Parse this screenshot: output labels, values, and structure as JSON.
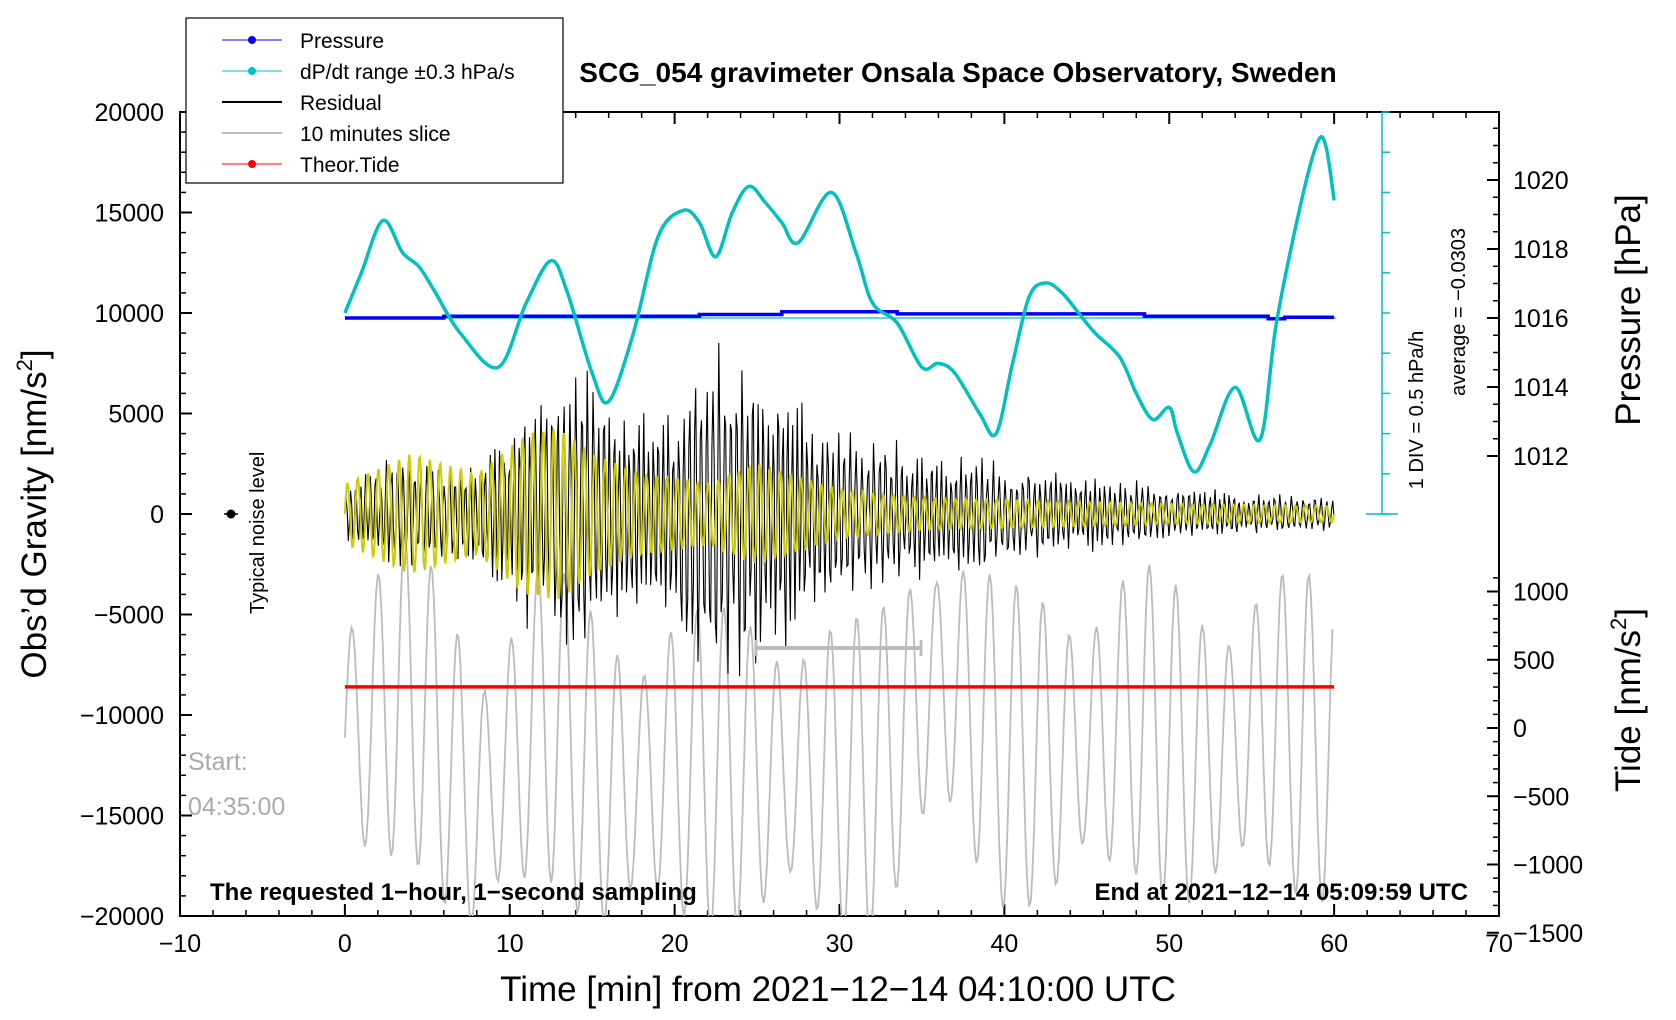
{
  "chart_data": {
    "type": "line",
    "title": "SCG_054 gravimeter Onsala Space Observatory, Sweden",
    "xlabel": "Time [min] from 2021−12−14 04:10:00 UTC",
    "ylabel": "Obs’d Gravity [nm/s²]",
    "ylabel_main": "Obs’d Gravity [nm/s",
    "ylabel_sup": "2",
    "ylabel_end": "]",
    "y2label": "Pressure [hPa]",
    "y3label_main": "Tide [nm/s",
    "y3label_sup": "2",
    "y3label_end": "]",
    "xlim": [
      -10,
      70
    ],
    "ylim": [
      -20000,
      20000
    ],
    "pressure_lim": [
      1010,
      1022
    ],
    "tide_lim": [
      -1500,
      1000
    ],
    "x_ticks": [
      "−10",
      "0",
      "10",
      "20",
      "30",
      "40",
      "50",
      "60",
      "70"
    ],
    "y_ticks": [
      "20000",
      "15000",
      "10000",
      "5000",
      "0",
      "−5000",
      "−10000",
      "−15000",
      "−20000"
    ],
    "pressure_ticks": [
      "1020",
      "1018",
      "1016",
      "1014",
      "1012"
    ],
    "tide_ticks": [
      "1000",
      "500",
      "0",
      "−500",
      "−1000",
      "−1500"
    ],
    "legend": [
      {
        "label": "Pressure",
        "color": "#0000ff"
      },
      {
        "label": "dP/dt range ±0.3 hPa/s",
        "color": "#00c0c0"
      },
      {
        "label": "Residual",
        "color": "#000000"
      },
      {
        "label": "10 minutes slice",
        "color": "#bbbbbb"
      },
      {
        "label": "Theor.Tide",
        "color": "#ff0000"
      }
    ],
    "annotations": {
      "noise_label": "Typical noise level",
      "start_label": "Start:",
      "start_time": "04:35:00",
      "sampling_note": "The requested 1−hour, 1−second sampling",
      "end_note": "End at 2021−12−14 05:09:59 UTC",
      "scale_div": "1 DIV = 0.5 hPa/h",
      "scale_avg": "average = −0.0303"
    },
    "series": [
      {
        "name": "Pressure",
        "color": "#0000ff",
        "units": "hPa",
        "x": [
          0,
          5.5,
          6,
          21,
          21.5,
          26,
          26.5,
          32.5,
          33.5,
          48,
          48.5,
          52,
          56,
          57,
          60
        ],
        "values": [
          1016.0,
          1016.0,
          1016.05,
          1016.05,
          1016.1,
          1016.1,
          1016.18,
          1016.18,
          1016.12,
          1016.12,
          1016.05,
          1016.05,
          1015.98,
          1016.02,
          1016.02
        ]
      },
      {
        "name": "dP/dt",
        "color": "#00c0c0",
        "units": "nm/s² scale",
        "x": [
          0,
          1,
          2.3,
          3.5,
          4.5,
          5.5,
          7,
          9.3,
          11,
          12.5,
          13.5,
          15,
          16,
          17.5,
          19,
          20.5,
          21.5,
          22.5,
          23.5,
          24.5,
          25.5,
          26.5,
          27.5,
          29.5,
          31,
          32,
          33.5,
          35,
          36,
          37,
          38.5,
          39.5,
          40.5,
          41.5,
          42.5,
          43.5,
          44.5,
          45.5,
          47,
          48,
          49,
          50,
          50.5,
          51.5,
          52.5,
          54,
          55.5,
          56.5,
          58,
          59,
          59.5,
          60
        ],
        "values": [
          10000,
          12000,
          14600,
          13000,
          12300,
          11000,
          9000,
          7300,
          10500,
          12600,
          11000,
          7000,
          5600,
          9000,
          13800,
          15100,
          14500,
          12800,
          15000,
          16300,
          15500,
          14500,
          13500,
          16000,
          13000,
          10500,
          9500,
          7300,
          7500,
          7000,
          5000,
          4000,
          7500,
          10800,
          11500,
          11000,
          10000,
          9000,
          7800,
          6000,
          4700,
          5300,
          4000,
          2100,
          3500,
          6300,
          3700,
          9500,
          15500,
          18500,
          18300,
          15600
        ]
      },
      {
        "name": "Residual",
        "color": "#000000",
        "units": "nm/s²",
        "x": [
          0,
          2,
          4,
          6,
          8,
          10,
          11,
          12,
          13,
          14,
          15,
          16,
          17,
          18,
          19,
          20,
          21,
          22,
          23,
          24,
          25,
          26,
          27,
          28,
          30,
          32,
          35,
          38,
          40,
          45,
          50,
          55,
          60
        ],
        "values": [
          1500,
          2500,
          3500,
          2500,
          3000,
          4500,
          7000,
          6000,
          8000,
          8500,
          7500,
          6000,
          5500,
          6500,
          6000,
          5500,
          8500,
          9000,
          8500,
          8800,
          9000,
          8000,
          8500,
          5500,
          4500,
          4000,
          3500,
          3500,
          2500,
          2000,
          1500,
          1200,
          900
        ]
      },
      {
        "name": "Filtered",
        "color": "#cccc00",
        "units": "nm/s²",
        "x": [
          0,
          4,
          8,
          11,
          13,
          15,
          18,
          20,
          22,
          25,
          30,
          35,
          40,
          50,
          60
        ],
        "values": [
          1500,
          3000,
          2000,
          4000,
          4300,
          3000,
          2000,
          1800,
          1500,
          2500,
          1200,
          800,
          700,
          500,
          400
        ]
      },
      {
        "name": "10 minutes slice",
        "color": "#bbbbbb",
        "units": "nm/s² (tide scale)",
        "x": [
          0,
          4,
          8,
          12,
          16,
          20,
          24,
          28,
          32,
          36,
          40,
          44,
          48,
          52,
          56,
          60
        ],
        "values": [
          -200,
          800,
          -1700,
          300,
          -1200,
          -800,
          -900,
          -1000,
          -1100,
          1100,
          -400,
          -500,
          200,
          -700,
          100,
          -400
        ]
      },
      {
        "name": "Theor.Tide",
        "color": "#ff0000",
        "units": "nm/s²",
        "x": [
          0,
          60
        ],
        "values": [
          -8600,
          -8600
        ]
      }
    ]
  }
}
